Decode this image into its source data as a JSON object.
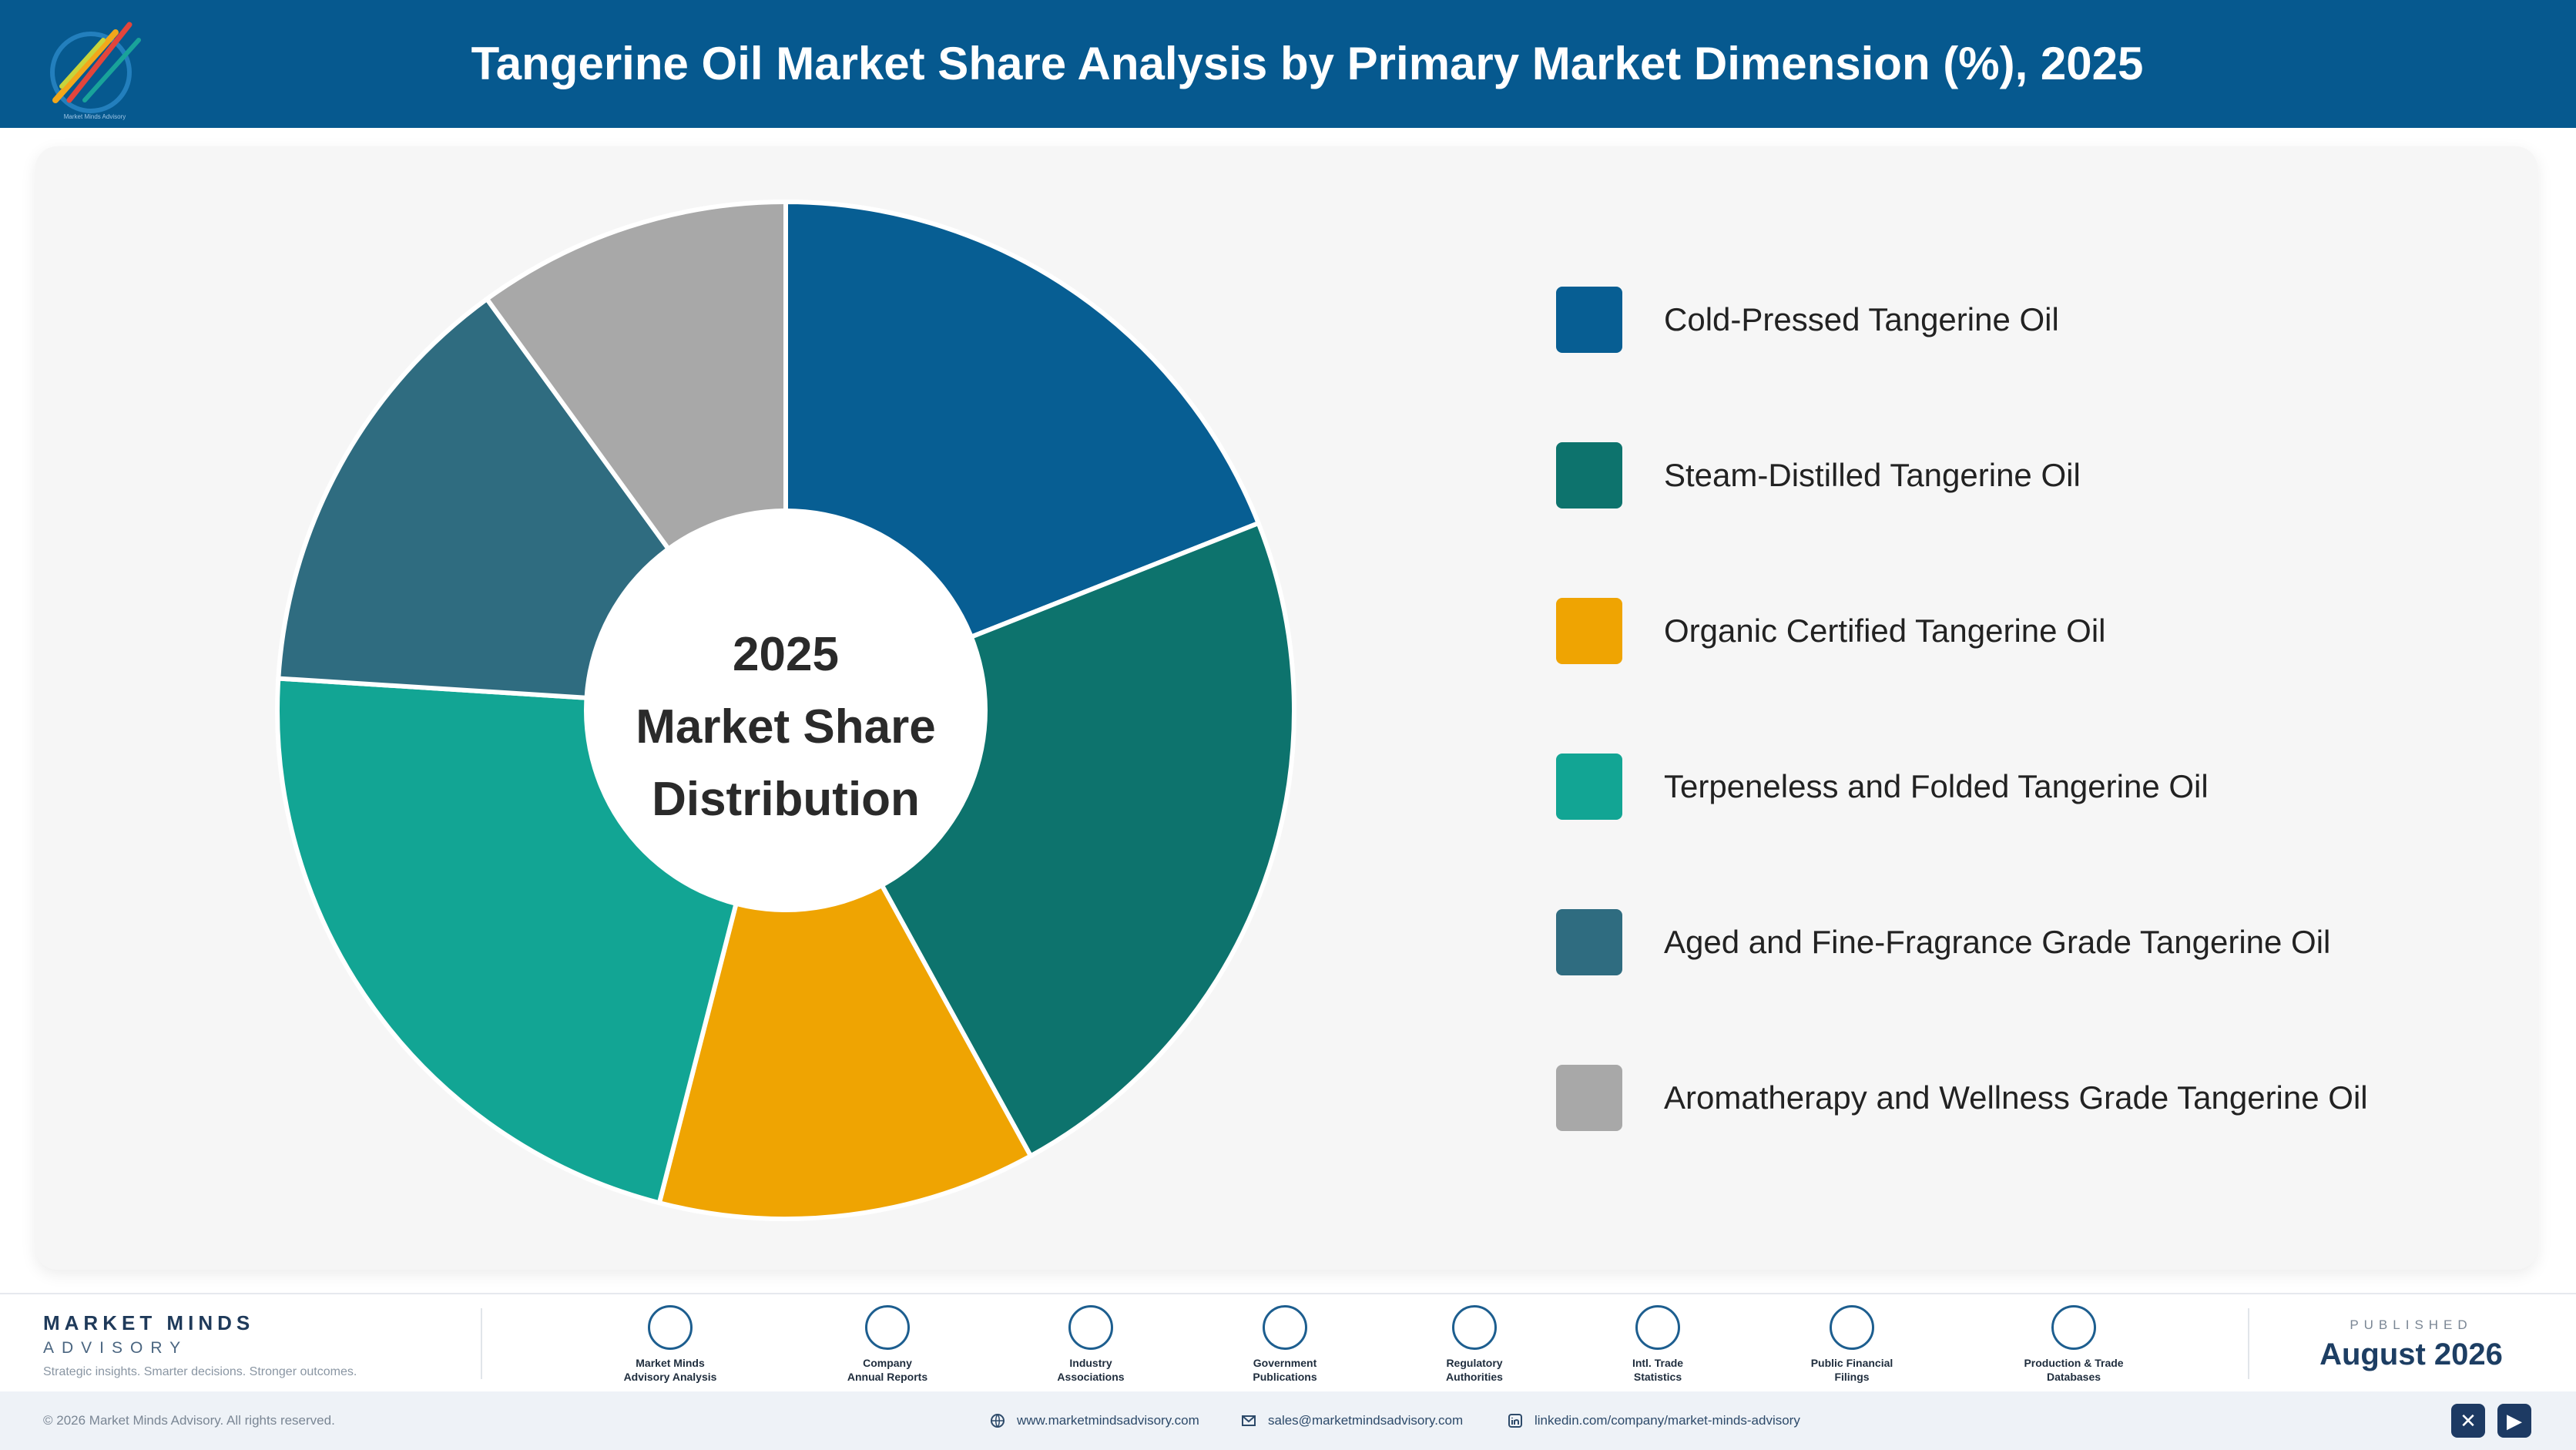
{
  "header": {
    "title": "Tangerine Oil Market Share Analysis by Primary Market Dimension (%), 2025",
    "logo_text": "Market Minds Advisory"
  },
  "chart_data": {
    "type": "pie",
    "center_label": [
      "2025",
      "Market Share",
      "Distribution"
    ],
    "categories": [
      "Cold-Pressed Tangerine Oil",
      "Steam-Distilled Tangerine Oil",
      "Organic Certified Tangerine Oil",
      "Terpeneless and Folded Tangerine Oil",
      "Aged and Fine-Fragrance Grade Tangerine Oil",
      "Aromatherapy and Wellness Grade Tangerine Oil"
    ],
    "values": [
      19,
      23,
      12,
      22,
      14,
      10
    ],
    "colors": [
      "#075e93",
      "#0d736d",
      "#efa402",
      "#12a594",
      "#2f6c80",
      "#a8a8a8"
    ],
    "legend_position": "right",
    "donut": true
  },
  "footer": {
    "brand_name": "MARKET MINDS",
    "brand_sub": "ADVISORY",
    "tagline": "Strategic insights. Smarter decisions. Stronger outcomes.",
    "sources": [
      {
        "label": "Market Minds\nAdvisory Analysis",
        "icon": "chart-line-icon"
      },
      {
        "label": "Company\nAnnual Reports",
        "icon": "document-icon"
      },
      {
        "label": "Industry\nAssociations",
        "icon": "network-icon"
      },
      {
        "label": "Government\nPublications",
        "icon": "building-icon"
      },
      {
        "label": "Regulatory\nAuthorities",
        "icon": "shield-icon"
      },
      {
        "label": "Intl. Trade\nStatistics",
        "icon": "globe-icon"
      },
      {
        "label": "Public Financial\nFilings",
        "icon": "currency-icon"
      },
      {
        "label": "Production & Trade\nDatabases",
        "icon": "database-icon"
      }
    ],
    "published_label": "PUBLISHED",
    "published_date": "August 2026"
  },
  "bottom_bar": {
    "copyright": "© 2026 Market Minds Advisory. All rights reserved.",
    "website": "www.marketmindsadvisory.com",
    "email": "sales@marketmindsadvisory.com",
    "linkedin": "linkedin.com/company/market-minds-advisory"
  }
}
